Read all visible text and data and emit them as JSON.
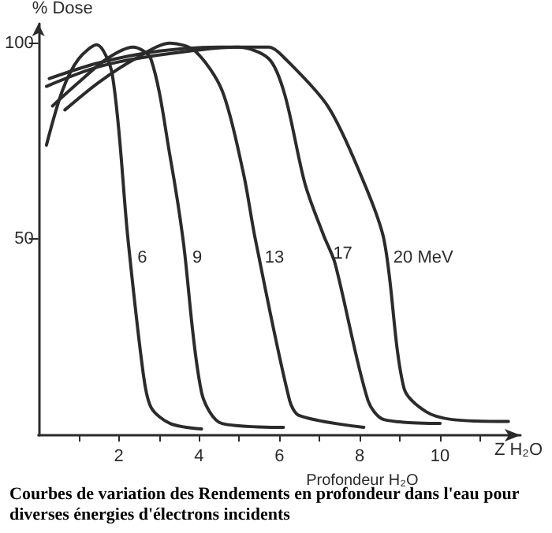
{
  "chart_data": {
    "type": "line",
    "ylabel": "% Dose",
    "xlabel": "Profondeur H₂O",
    "annotations": [
      "Z H₂O",
      "Courbes de variation des Rendements en profondeur dans l'eau pour diverses énergies d'électrons incidents"
    ],
    "xlim": [
      0,
      12
    ],
    "xticks": [
      {
        "value": 1,
        "label": null
      },
      2,
      {
        "value": 3,
        "label": null
      },
      4,
      {
        "value": 5,
        "label": null
      },
      6,
      {
        "value": 7,
        "label": null
      },
      8,
      {
        "value": 9,
        "label": null
      },
      10,
      {
        "value": 11,
        "label": null
      }
    ],
    "ylim": [
      0,
      105
    ],
    "yticks": [
      50,
      100
    ],
    "grid": false,
    "legend": false,
    "marker": "none",
    "line_style": "solid",
    "series": [
      {
        "name": "6",
        "color": "#2b2b2b",
        "x": [
          0.2,
          0.6,
          1.0,
          1.45,
          1.84,
          2.23,
          2.62,
          2.81,
          3.28,
          4.06
        ],
        "values": [
          74,
          88,
          96,
          99.6,
          92,
          50,
          15,
          7,
          3,
          1.6
        ]
      },
      {
        "name": "9",
        "color": "#2b2b2b",
        "x": [
          0.35,
          1.0,
          1.7,
          2.35,
          2.8,
          3.28,
          3.6,
          4.06,
          4.57,
          6.1
        ],
        "values": [
          84,
          90,
          96,
          99,
          96,
          71,
          50,
          11,
          3,
          2
        ]
      },
      {
        "name": "13",
        "color": "#2b2b2b",
        "x": [
          0.66,
          1.5,
          2.4,
          3.28,
          3.9,
          4.57,
          5.1,
          5.4,
          6.25,
          6.5,
          8.1
        ],
        "values": [
          83,
          90,
          96,
          100,
          98,
          88,
          67,
          50,
          9,
          5,
          2
        ]
      },
      {
        "name": "17",
        "color": "#2b2b2b",
        "x": [
          0.2,
          1.5,
          3.0,
          4.96,
          5.74,
          6.13,
          6.64,
          7.1,
          7.38,
          8.2,
          8.6,
          10
        ],
        "values": [
          89,
          94,
          97,
          99,
          96,
          87,
          64,
          51,
          44,
          9,
          4,
          3
        ]
      },
      {
        "name": "20 MeV",
        "color": "#2b2b2b",
        "x": [
          0.27,
          1.5,
          3.0,
          4.5,
          5.74,
          6.1,
          7.2,
          8.0,
          8.6,
          9.1,
          9.65,
          10.3,
          11.7
        ],
        "values": [
          91,
          95,
          98,
          99,
          99,
          96.5,
          84,
          67,
          50,
          12,
          6,
          4,
          3.5
        ]
      }
    ]
  }
}
